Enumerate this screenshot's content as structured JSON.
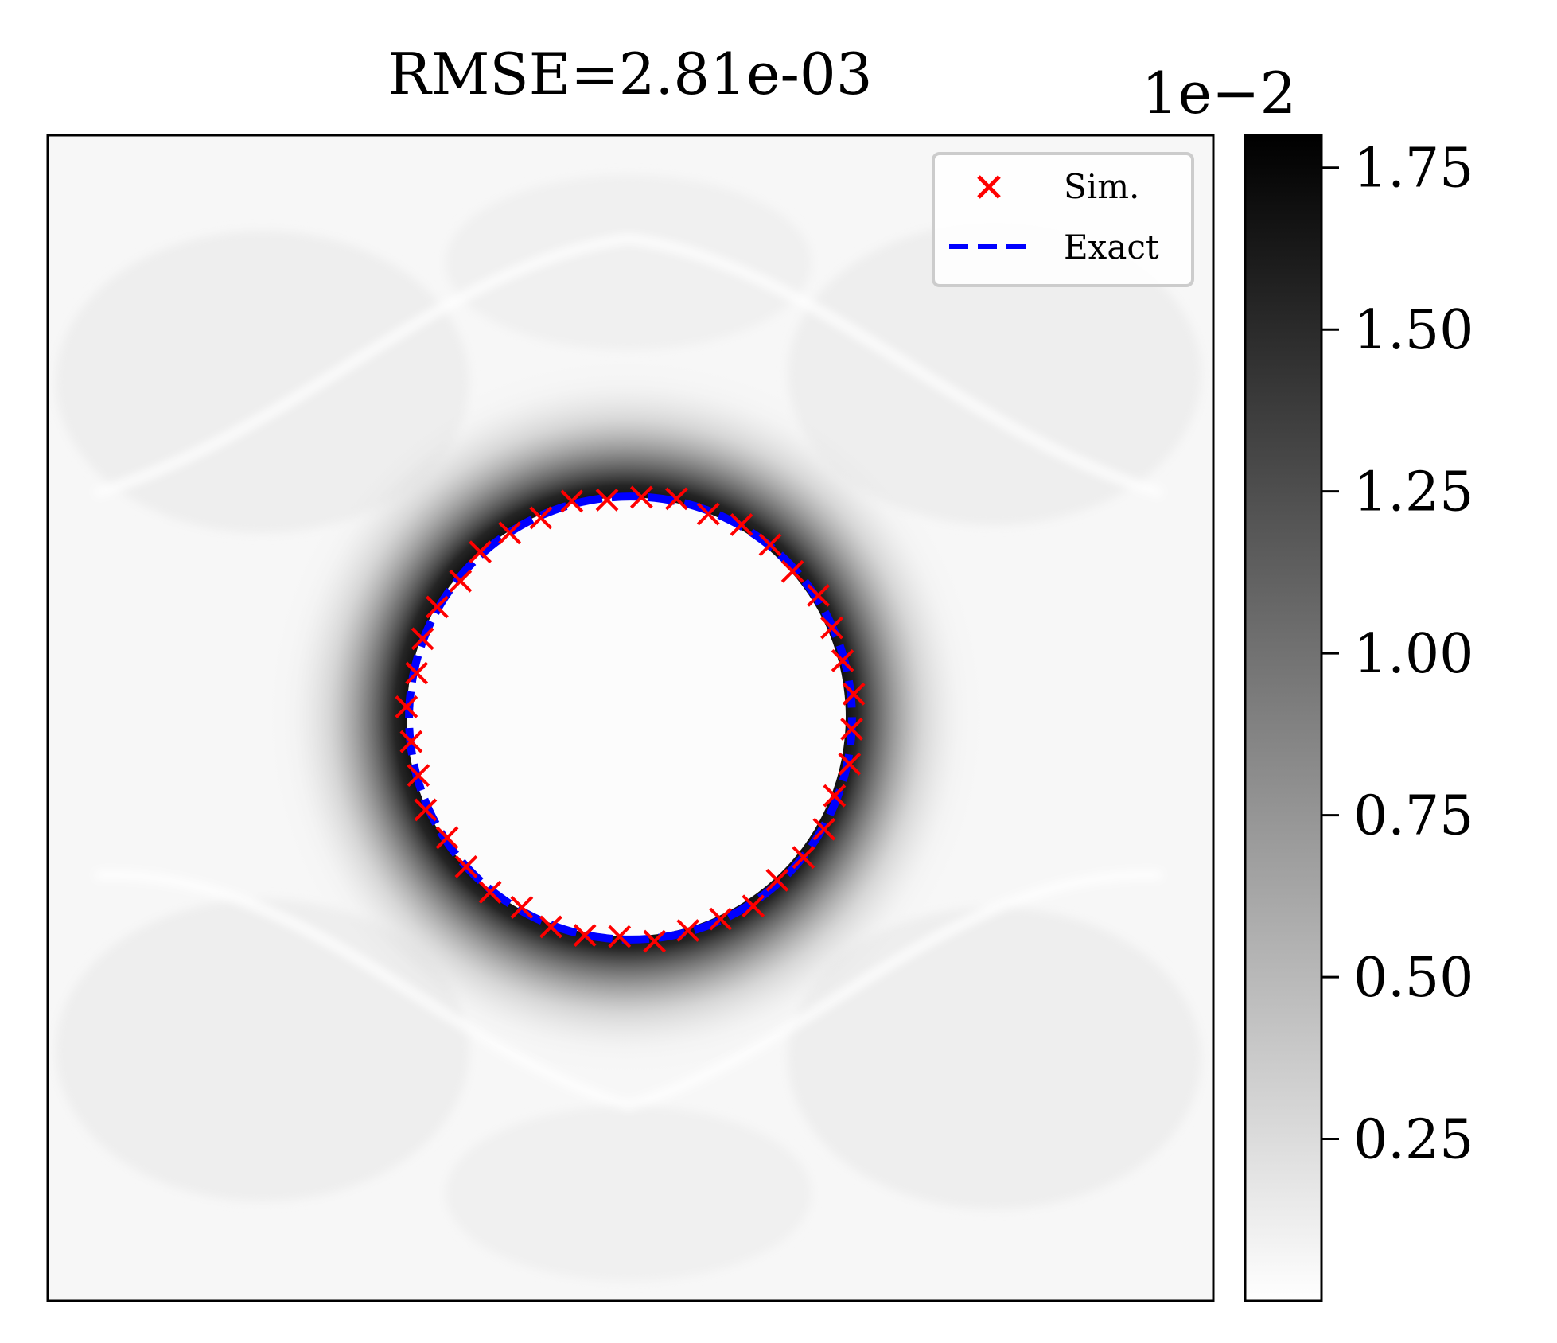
{
  "chart_data": {
    "type": "heatmap",
    "title": "RMSE=2.81e-03",
    "xlabel": "",
    "ylabel": "",
    "colormap": "grayscale (white = low, black = high)",
    "colorbar": {
      "multiplier": "1e−2",
      "ticks": [
        0.25,
        0.5,
        0.75,
        1.0,
        1.25,
        1.5,
        1.75
      ],
      "tick_labels": [
        "0.25",
        "0.50",
        "0.75",
        "1.00",
        "1.25",
        "1.50",
        "1.75"
      ],
      "range": [
        0.0,
        1.8
      ],
      "color_low": "#ffffff",
      "color_high": "#000000"
    },
    "legend": {
      "placement": "upper-right",
      "entries": [
        {
          "label": "Sim.",
          "marker": "x",
          "color": "#ff0000"
        },
        {
          "label": "Exact",
          "marker": "dashed-line",
          "color": "#0000ff"
        }
      ]
    },
    "series": [
      {
        "name": "Sim.",
        "kind": "markers",
        "count": 40,
        "shape": "circle",
        "color": "#ff0000"
      },
      {
        "name": "Exact",
        "kind": "curve",
        "shape": "circle",
        "color": "#0000ff"
      }
    ],
    "interface_circle": {
      "center": [
        0.5,
        0.5
      ],
      "radius": 0.19
    },
    "grid": false,
    "axes_ticks_visible": false
  }
}
